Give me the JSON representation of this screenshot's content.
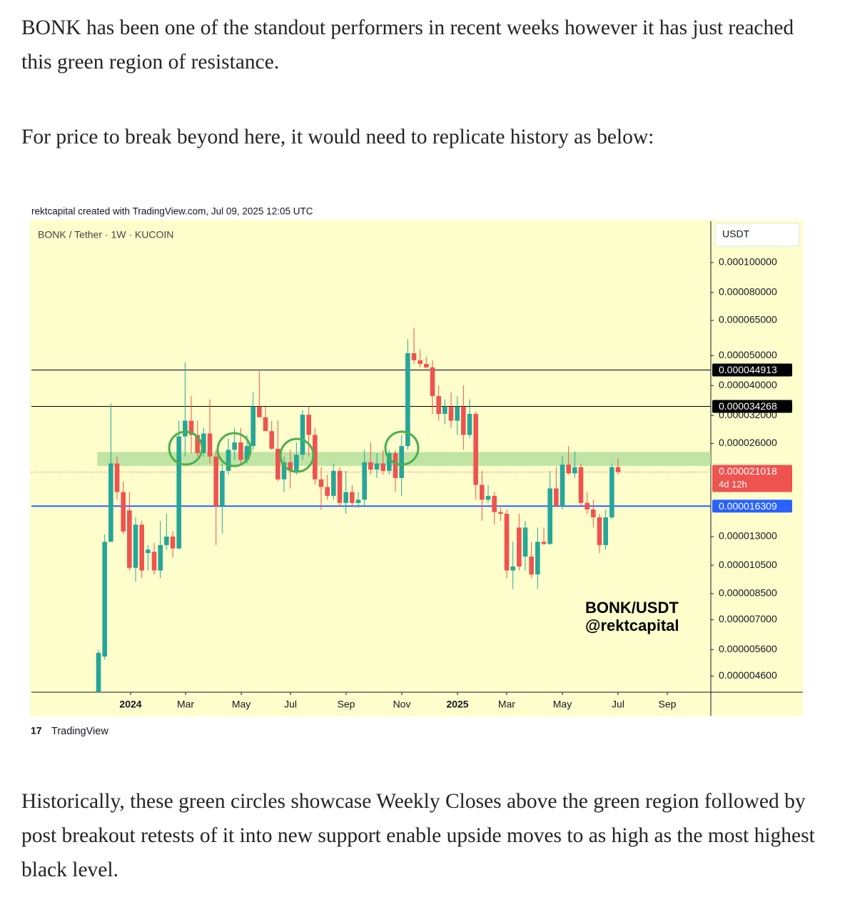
{
  "article": {
    "paragraphs": [
      "BONK has been one of the standout performers in recent weeks however it has just reached this green region of resistance.",
      "For price to break beyond here, it would need to replicate history as below:",
      "Historically, these green circles showcase Weekly Closes above the green region followed by post breakout retests of it into new support enable upside moves to as high as the most highest black level."
    ]
  },
  "chart_data": {
    "type": "candlestick",
    "caption": "rektcapital created with TradingView.com, Jul 09, 2025 12:05 UTC",
    "symbol": "BONK / Tether · 1W · KUCOIN",
    "currency": "USDT",
    "watermark": [
      "BONK/USDT",
      "@rektcapital"
    ],
    "brand": "TradingView",
    "log_scale": true,
    "up_color": "#26a69a",
    "down_color": "#ef5350",
    "open": [
      4.08e-06,
      5.32e-06,
      1.25e-05,
      2.24e-05,
      1.81e-05,
      1.58e-05,
      1.03e-05,
      1.42e-05,
      1.15e-05,
      1.16e-05,
      1.01e-05,
      1.22e-05,
      1.3e-05,
      1.19e-05,
      2.74e-05,
      3.08e-05,
      2.77e-05,
      2.42e-05,
      2.8e-05,
      2.36e-05,
      1.63e-05,
      2.12e-05,
      2.48e-05,
      2.62e-05,
      2.3e-05,
      2.55e-05,
      3.42e-05,
      3.16e-05,
      2.85e-05,
      2.5e-05,
      1.99e-05,
      2.26e-05,
      2.12e-05,
      2.39e-05,
      3.22e-05,
      2.77e-05,
      1.99e-05,
      1.88e-05,
      1.76e-05,
      2.12e-05,
      1.67e-05,
      1.81e-05,
      1.67e-05,
      1.71e-05,
      2.26e-05,
      2.14e-05,
      2.24e-05,
      2.12e-05,
      2.42e-05,
      2.01e-05,
      2.55e-05,
      5.09e-05,
      4.83e-05,
      4.7e-05,
      4.58e-05,
      3.7e-05,
      3.24e-05,
      3.42e-05,
      3.08e-05,
      3.42e-05,
      2.77e-05,
      3.24e-05,
      1.91e-05,
      1.71e-05,
      1.76e-05,
      1.56e-05,
      1.54e-05,
      1.01e-05,
      1.39e-05,
      1.12e-05,
      1.12e-05,
      9.8e-06,
      1.25e-05,
      1.23e-05,
      1.86e-05,
      1.63e-05,
      2.22e-05,
      2.08e-05,
      2.18e-05,
      1.67e-05,
      1.59e-05,
      1.5e-05,
      1.22e-05,
      1.5e-05,
      2.18e-05
    ],
    "high": [
      5.6e-06,
      1.32e-05,
      3.5e-05,
      2.36e-05,
      1.96e-05,
      1.81e-05,
      1.5e-05,
      1.46e-05,
      1.22e-05,
      1.24e-05,
      1.46e-05,
      1.54e-05,
      1.35e-05,
      3.08e-05,
      4.76e-05,
      3.7e-05,
      3.08e-05,
      2.92e-05,
      3.61e-05,
      2.48e-05,
      2.24e-05,
      2.7e-05,
      2.92e-05,
      2.92e-05,
      2.77e-05,
      3.8e-05,
      4.46e-05,
      3.42e-05,
      3.08e-05,
      3.08e-05,
      2.36e-05,
      2.48e-05,
      2.62e-05,
      3.33e-05,
      3.42e-05,
      2.92e-05,
      2.18e-05,
      2.06e-05,
      2.24e-05,
      2.18e-05,
      2.12e-05,
      1.91e-05,
      1.81e-05,
      2.48e-05,
      2.62e-05,
      2.42e-05,
      2.48e-05,
      2.48e-05,
      2.48e-05,
      2.77e-05,
      5.65e-05,
      6.15e-05,
      5.23e-05,
      4.96e-05,
      4.83e-05,
      4.01e-05,
      3.61e-05,
      3.8e-05,
      3.7e-05,
      4.01e-05,
      3.61e-05,
      3.3e-05,
      2.12e-05,
      1.91e-05,
      1.81e-05,
      1.61e-05,
      1.59e-05,
      1.25e-05,
      1.54e-05,
      1.46e-05,
      1.25e-05,
      1.39e-05,
      1.39e-05,
      2.12e-05,
      2.18e-05,
      2.36e-05,
      2.55e-05,
      2.45e-05,
      2.24e-05,
      1.81e-05,
      1.71e-05,
      1.54e-05,
      1.59e-05,
      2.24e-05,
      2.33e-05
    ],
    "low": [
      4.08e-06,
      5.2e-06,
      1.25e-05,
      1.71e-05,
      1.32e-05,
      1.01e-05,
      9.3e-06,
      9.55e-06,
      1.01e-05,
      9.8e-06,
      9.55e-06,
      1.18e-05,
      1.11e-05,
      1.18e-05,
      2.36e-05,
      2.42e-05,
      2.36e-05,
      2.36e-05,
      2.24e-05,
      1.22e-05,
      1.33e-05,
      2.06e-05,
      2.3e-05,
      2.24e-05,
      2.24e-05,
      2.48e-05,
      3.16e-05,
      2.85e-05,
      2.48e-05,
      1.96e-05,
      1.81e-05,
      1.86e-05,
      2.06e-05,
      2.3e-05,
      2.36e-05,
      1.91e-05,
      1.59e-05,
      1.71e-05,
      1.71e-05,
      1.63e-05,
      1.54e-05,
      1.63e-05,
      1.61e-05,
      1.63e-05,
      2.06e-05,
      2.01e-05,
      2.06e-05,
      2.06e-05,
      1.81e-05,
      1.76e-05,
      2.48e-05,
      4.7e-05,
      4.58e-05,
      4.54e-05,
      3.24e-05,
      3.08e-05,
      3e-05,
      2.92e-05,
      2.77e-05,
      2.48e-05,
      2.7e-05,
      1.71e-05,
      1.46e-05,
      1.67e-05,
      1.42e-05,
      1.46e-05,
      9.55e-06,
      8.8e-06,
      1.01e-05,
      1.01e-05,
      9.55e-06,
      8.8e-06,
      1.22e-05,
      1.22e-05,
      1.63e-05,
      1.59e-05,
      2.06e-05,
      2.01e-05,
      1.63e-05,
      1.54e-05,
      1.39e-05,
      1.15e-05,
      1.18e-05,
      1.48e-05,
      2.06e-05
    ],
    "close": [
      5.47e-06,
      1.25e-05,
      2.24e-05,
      1.81e-05,
      1.35e-05,
      1.03e-05,
      1.42e-05,
      1.01e-05,
      1.18e-05,
      1.01e-05,
      1.22e-05,
      1.3e-05,
      1.19e-05,
      2.74e-05,
      3.08e-05,
      2.77e-05,
      2.42e-05,
      2.8e-05,
      2.36e-05,
      1.63e-05,
      2.12e-05,
      2.48e-05,
      2.62e-05,
      2.3e-05,
      2.55e-05,
      3.42e-05,
      3.16e-05,
      2.85e-05,
      2.5e-05,
      1.99e-05,
      2.26e-05,
      2.12e-05,
      2.39e-05,
      3.22e-05,
      2.77e-05,
      1.99e-05,
      1.88e-05,
      1.76e-05,
      2.12e-05,
      1.67e-05,
      1.81e-05,
      1.67e-05,
      1.71e-05,
      2.26e-05,
      2.14e-05,
      2.24e-05,
      2.12e-05,
      2.42e-05,
      2.01e-05,
      2.55e-05,
      5.09e-05,
      4.83e-05,
      4.7e-05,
      4.58e-05,
      3.7e-05,
      3.24e-05,
      3.42e-05,
      3.08e-05,
      3.42e-05,
      2.77e-05,
      3.24e-05,
      1.91e-05,
      1.71e-05,
      1.76e-05,
      1.56e-05,
      1.54e-05,
      1.01e-05,
      1.04e-05,
      1.04e-05,
      1.39e-05,
      9.8e-06,
      1.25e-05,
      1.23e-05,
      1.86e-05,
      1.63e-05,
      2.22e-05,
      2.08e-05,
      2.18e-05,
      1.67e-05,
      1.59e-05,
      1.5e-05,
      1.22e-05,
      1.5e-05,
      2.18e-05,
      2.1018e-05
    ],
    "xlim": [
      -10.85,
      99.0
    ],
    "xticks": [
      {
        "value": 5.19,
        "label": "2024"
      },
      {
        "value": 14.08,
        "label": "Mar"
      },
      {
        "value": 23.08,
        "label": "May"
      },
      {
        "value": 31.04,
        "label": "Jul"
      },
      {
        "value": 40.04,
        "label": "Sep"
      },
      {
        "value": 49.04,
        "label": "Nov"
      },
      {
        "value": 58.04,
        "label": "2025"
      },
      {
        "value": 65.99,
        "label": "Mar"
      },
      {
        "value": 75.0,
        "label": "May"
      },
      {
        "value": 84.0,
        "label": "Jul"
      },
      {
        "value": 91.96,
        "label": "Sep"
      }
    ],
    "ylim": [
      4.08e-06,
      0.000136
    ],
    "yticks": [
      {
        "value": 0.0001,
        "label": "0.000100000"
      },
      {
        "value": 8e-05,
        "label": "0.000080000"
      },
      {
        "value": 6.5e-05,
        "label": "0.000065000"
      },
      {
        "value": 5e-05,
        "label": "0.000050000"
      },
      {
        "value": 4e-05,
        "label": "0.000040000"
      },
      {
        "value": 3.2e-05,
        "label": "0.000032000"
      },
      {
        "value": 2.6e-05,
        "label": "0.000026000"
      },
      {
        "value": 1.3e-05,
        "label": "0.000013000"
      },
      {
        "value": 1.05e-05,
        "label": "0.000010500"
      },
      {
        "value": 8.5e-06,
        "label": "0.000008500"
      },
      {
        "value": 7e-06,
        "label": "0.000007000"
      },
      {
        "value": 5.6e-06,
        "label": "0.000005600"
      },
      {
        "value": 4.6e-06,
        "label": "0.000004600"
      }
    ],
    "zone": {
      "range": [
        2.2e-05,
        2.44e-05
      ],
      "color": "#b5df9b"
    },
    "levels": [
      {
        "value": 4.4913e-05,
        "label": "0.000044913",
        "color": "#000000"
      },
      {
        "value": 3.4268e-05,
        "label": "0.000034268",
        "color": "#000000"
      },
      {
        "value": 1.6309e-05,
        "label": "0.000016309",
        "color": "#2962ff"
      }
    ],
    "last_price": {
      "value": 2.1018e-05,
      "label": "0.000021018",
      "countdown": "4d 12h",
      "color": "#ef5350"
    }
  }
}
